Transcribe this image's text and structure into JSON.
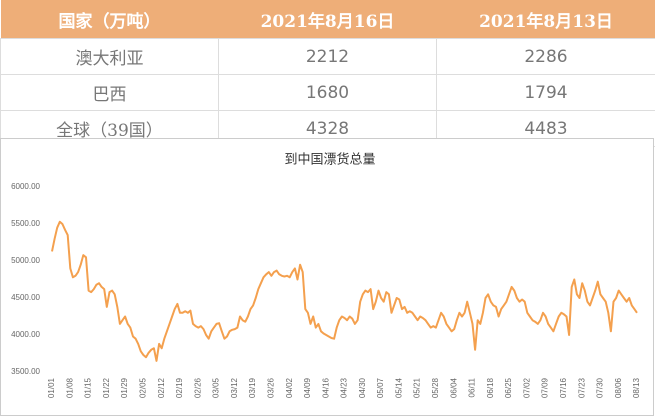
{
  "table": {
    "header": [
      "国家（万吨）",
      "2021年8月16日",
      "2021年8月13日"
    ],
    "rows": [
      [
        "澳大利亚",
        "2212",
        "2286"
      ],
      [
        "巴西",
        "1680",
        "1794"
      ],
      [
        "全球（39国）",
        "4328",
        "4483"
      ]
    ]
  },
  "chart_data": {
    "type": "line",
    "title": "到中国漂货总量",
    "categories": [
      "01/01",
      null,
      null,
      null,
      null,
      null,
      null,
      "01/08",
      null,
      null,
      null,
      null,
      null,
      null,
      "01/15",
      null,
      null,
      null,
      null,
      null,
      null,
      "01/22",
      null,
      null,
      null,
      null,
      null,
      null,
      "01/29",
      null,
      null,
      null,
      null,
      null,
      null,
      "02/05",
      null,
      null,
      null,
      null,
      null,
      null,
      "02/12",
      null,
      null,
      null,
      null,
      null,
      null,
      "02/19",
      null,
      null,
      null,
      null,
      null,
      null,
      "02/26",
      null,
      null,
      null,
      null,
      null,
      null,
      "03/05",
      null,
      null,
      null,
      null,
      null,
      null,
      "03/12",
      null,
      null,
      null,
      null,
      null,
      null,
      "03/19",
      null,
      null,
      null,
      null,
      null,
      null,
      "03/26",
      null,
      null,
      null,
      null,
      null,
      null,
      "04/02",
      null,
      null,
      null,
      null,
      null,
      null,
      "04/09",
      null,
      null,
      null,
      null,
      null,
      null,
      "04/16",
      null,
      null,
      null,
      null,
      null,
      null,
      "04/23",
      null,
      null,
      null,
      null,
      null,
      null,
      "04/30",
      null,
      null,
      null,
      null,
      null,
      null,
      "05/07",
      null,
      null,
      null,
      null,
      null,
      null,
      "05/14",
      null,
      null,
      null,
      null,
      null,
      null,
      "05/21",
      null,
      null,
      null,
      null,
      null,
      null,
      "05/28",
      null,
      null,
      null,
      null,
      null,
      null,
      "06/04",
      null,
      null,
      null,
      null,
      null,
      null,
      "06/11",
      null,
      null,
      null,
      null,
      null,
      null,
      "06/18",
      null,
      null,
      null,
      null,
      null,
      null,
      "06/25",
      null,
      null,
      null,
      null,
      null,
      null,
      "07/02",
      null,
      null,
      null,
      null,
      null,
      null,
      "07/09",
      null,
      null,
      null,
      null,
      null,
      null,
      "07/16",
      null,
      null,
      null,
      null,
      null,
      null,
      "07/23",
      null,
      null,
      null,
      null,
      null,
      null,
      "07/30",
      null,
      null,
      null,
      null,
      null,
      null,
      "08/06",
      null,
      null,
      null,
      null,
      null,
      null,
      "08/13"
    ],
    "series": [
      {
        "color": "#f4a04e",
        "values": [
          5130,
          5300,
          5450,
          5530,
          5500,
          5420,
          5350,
          4900,
          4780,
          4800,
          4850,
          4950,
          5080,
          5050,
          4600,
          4580,
          4620,
          4680,
          4700,
          4650,
          4620,
          4380,
          4580,
          4600,
          4550,
          4380,
          4150,
          4200,
          4250,
          4150,
          4100,
          3980,
          3950,
          3880,
          3780,
          3730,
          3700,
          3760,
          3800,
          3820,
          3650,
          3880,
          3820,
          3950,
          4050,
          4150,
          4250,
          4350,
          4420,
          4300,
          4300,
          4320,
          4300,
          4330,
          4150,
          4120,
          4100,
          4120,
          4080,
          4000,
          3950,
          4050,
          4100,
          4150,
          4160,
          4050,
          3950,
          3980,
          4050,
          4070,
          4080,
          4100,
          4250,
          4200,
          4180,
          4250,
          4350,
          4400,
          4500,
          4620,
          4700,
          4780,
          4820,
          4850,
          4800,
          4850,
          4870,
          4820,
          4800,
          4790,
          4800,
          4780,
          4850,
          4900,
          4750,
          4950,
          4850,
          4350,
          4300,
          4150,
          4250,
          4100,
          4150,
          4050,
          4020,
          4000,
          3980,
          3960,
          3950,
          4100,
          4200,
          4250,
          4230,
          4200,
          4250,
          4220,
          4150,
          4200,
          4450,
          4550,
          4600,
          4580,
          4620,
          4350,
          4450,
          4600,
          4500,
          4450,
          4580,
          4550,
          4300,
          4400,
          4500,
          4480,
          4350,
          4380,
          4300,
          4320,
          4300,
          4250,
          4200,
          4250,
          4230,
          4200,
          4150,
          4100,
          4120,
          4100,
          4200,
          4300,
          4250,
          4150,
          4100,
          4050,
          4080,
          4200,
          4300,
          4250,
          4300,
          4450,
          4300,
          4150,
          3800,
          4200,
          4150,
          4300,
          4500,
          4550,
          4450,
          4400,
          4380,
          4250,
          4350,
          4400,
          4450,
          4550,
          4650,
          4600,
          4500,
          4450,
          4480,
          4450,
          4300,
          4250,
          4200,
          4180,
          4150,
          4200,
          4300,
          4250,
          4150,
          4100,
          4050,
          4150,
          4250,
          4300,
          4280,
          4250,
          4000,
          4650,
          4750,
          4550,
          4500,
          4700,
          4600,
          4450,
          4400,
          4500,
          4600,
          4720,
          4550,
          4500,
          4450,
          4300,
          4050,
          4450,
          4500,
          4600,
          4550,
          4500,
          4450,
          4500,
          4400,
          4350,
          4300
        ]
      }
    ],
    "ylim": [
      3500,
      6000
    ],
    "yticks": [
      {
        "value": 3500,
        "label": "3500.00"
      },
      {
        "value": 4000,
        "label": "4000.00"
      },
      {
        "value": 4500,
        "label": "4500.00"
      },
      {
        "value": 5000,
        "label": "5000.00"
      },
      {
        "value": 5500,
        "label": "5500.00"
      },
      {
        "value": 6000,
        "label": "6000.00"
      }
    ]
  }
}
